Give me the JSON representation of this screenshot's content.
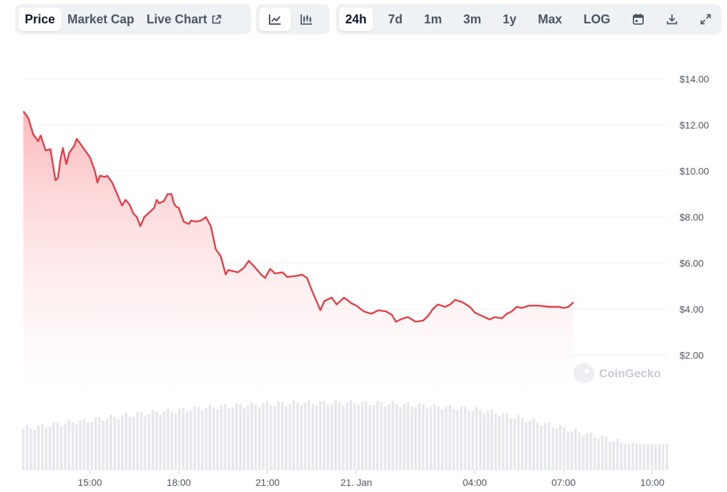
{
  "toolbar": {
    "metric_tabs": [
      {
        "label": "Price",
        "active": true
      },
      {
        "label": "Market Cap",
        "active": false
      },
      {
        "label": "Live Chart",
        "active": false
      }
    ],
    "chart_type_icons": [
      {
        "icon": "line-chart-icon",
        "active": true
      },
      {
        "icon": "candlestick-chart-icon",
        "active": false
      }
    ],
    "ranges": [
      {
        "label": "24h",
        "active": true
      },
      {
        "label": "7d",
        "active": false
      },
      {
        "label": "1m",
        "active": false
      },
      {
        "label": "3m",
        "active": false
      },
      {
        "label": "1y",
        "active": false
      },
      {
        "label": "Max",
        "active": false
      }
    ],
    "log_label": "LOG",
    "tool_icons": [
      "calendar-icon",
      "download-icon",
      "expand-icon"
    ]
  },
  "watermark": "CoinGecko",
  "colors": {
    "line": "#ea3943",
    "fill_top": "#fbb6b9",
    "volume": "#e5e7eb",
    "grid": "#eef0f3"
  },
  "chart_data": {
    "type": "area",
    "title": "",
    "y_axis": {
      "min": 2,
      "max": 14,
      "ticks": [
        2,
        4,
        6,
        8,
        10,
        12,
        14
      ],
      "tick_labels": [
        "$2.00",
        "$4.00",
        "$6.00",
        "$8.00",
        "$10.00",
        "$12.00",
        "$14.00"
      ],
      "position": "right"
    },
    "x_axis": {
      "start": "2025-01-20 12:45",
      "end": "2025-01-21 10:30",
      "ticks": [
        {
          "time": "2025-01-20 15:00",
          "label": "15:00"
        },
        {
          "time": "2025-01-20 18:00",
          "label": "18:00"
        },
        {
          "time": "2025-01-20 21:00",
          "label": "21:00"
        },
        {
          "time": "2025-01-21 00:00",
          "label": "21. Jan"
        },
        {
          "time": "2025-01-21 04:00",
          "label": "04:00"
        },
        {
          "time": "2025-01-21 07:00",
          "label": "07:00"
        },
        {
          "time": "2025-01-21 10:00",
          "label": "10:00"
        }
      ]
    },
    "grid": true,
    "series": [
      {
        "points": [
          [
            "2025-01-20 12:45",
            12.6
          ],
          [
            "2025-01-20 12:55",
            12.3
          ],
          [
            "2025-01-20 13:05",
            11.6
          ],
          [
            "2025-01-20 13:15",
            11.3
          ],
          [
            "2025-01-20 13:20",
            11.55
          ],
          [
            "2025-01-20 13:30",
            10.9
          ],
          [
            "2025-01-20 13:40",
            10.95
          ],
          [
            "2025-01-20 13:50",
            9.6
          ],
          [
            "2025-01-20 13:55",
            9.7
          ],
          [
            "2025-01-20 14:00",
            10.5
          ],
          [
            "2025-01-20 14:05",
            11.0
          ],
          [
            "2025-01-20 14:12",
            10.3
          ],
          [
            "2025-01-20 14:18",
            10.8
          ],
          [
            "2025-01-20 14:28",
            11.1
          ],
          [
            "2025-01-20 14:33",
            11.4
          ],
          [
            "2025-01-20 14:40",
            11.2
          ],
          [
            "2025-01-20 14:50",
            10.9
          ],
          [
            "2025-01-20 15:00",
            10.6
          ],
          [
            "2025-01-20 15:10",
            10.0
          ],
          [
            "2025-01-20 15:15",
            9.5
          ],
          [
            "2025-01-20 15:20",
            9.8
          ],
          [
            "2025-01-20 15:30",
            9.75
          ],
          [
            "2025-01-20 15:35",
            9.8
          ],
          [
            "2025-01-20 15:45",
            9.5
          ],
          [
            "2025-01-20 15:55",
            9.0
          ],
          [
            "2025-01-20 16:05",
            8.5
          ],
          [
            "2025-01-20 16:12",
            8.75
          ],
          [
            "2025-01-20 16:20",
            8.55
          ],
          [
            "2025-01-20 16:28",
            8.15
          ],
          [
            "2025-01-20 16:35",
            8.0
          ],
          [
            "2025-01-20 16:42",
            7.6
          ],
          [
            "2025-01-20 16:50",
            8.0
          ],
          [
            "2025-01-20 17:00",
            8.2
          ],
          [
            "2025-01-20 17:10",
            8.4
          ],
          [
            "2025-01-20 17:15",
            8.75
          ],
          [
            "2025-01-20 17:20",
            8.6
          ],
          [
            "2025-01-20 17:30",
            8.7
          ],
          [
            "2025-01-20 17:37",
            9.0
          ],
          [
            "2025-01-20 17:45",
            9.0
          ],
          [
            "2025-01-20 17:50",
            8.6
          ],
          [
            "2025-01-20 17:55",
            8.45
          ],
          [
            "2025-01-20 18:00",
            8.4
          ],
          [
            "2025-01-20 18:10",
            7.8
          ],
          [
            "2025-01-20 18:20",
            7.7
          ],
          [
            "2025-01-20 18:25",
            7.85
          ],
          [
            "2025-01-20 18:35",
            7.8
          ],
          [
            "2025-01-20 18:45",
            7.85
          ],
          [
            "2025-01-20 18:55",
            8.0
          ],
          [
            "2025-01-20 19:05",
            7.6
          ],
          [
            "2025-01-20 19:15",
            6.6
          ],
          [
            "2025-01-20 19:25",
            6.3
          ],
          [
            "2025-01-20 19:35",
            5.5
          ],
          [
            "2025-01-20 19:40",
            5.7
          ],
          [
            "2025-01-20 19:50",
            5.65
          ],
          [
            "2025-01-20 20:00",
            5.6
          ],
          [
            "2025-01-20 20:12",
            5.8
          ],
          [
            "2025-01-20 20:22",
            6.1
          ],
          [
            "2025-01-20 20:35",
            5.8
          ],
          [
            "2025-01-20 20:47",
            5.5
          ],
          [
            "2025-01-20 20:55",
            5.35
          ],
          [
            "2025-01-20 21:05",
            5.75
          ],
          [
            "2025-01-20 21:15",
            5.55
          ],
          [
            "2025-01-20 21:30",
            5.6
          ],
          [
            "2025-01-20 21:40",
            5.4
          ],
          [
            "2025-01-20 22:00",
            5.45
          ],
          [
            "2025-01-20 22:10",
            5.5
          ],
          [
            "2025-01-20 22:20",
            5.35
          ],
          [
            "2025-01-20 22:30",
            4.8
          ],
          [
            "2025-01-20 22:40",
            4.3
          ],
          [
            "2025-01-20 22:47",
            3.95
          ],
          [
            "2025-01-20 22:55",
            4.35
          ],
          [
            "2025-01-20 23:10",
            4.5
          ],
          [
            "2025-01-20 23:20",
            4.2
          ],
          [
            "2025-01-20 23:35",
            4.5
          ],
          [
            "2025-01-20 23:50",
            4.25
          ],
          [
            "2025-01-21 00:00",
            4.15
          ],
          [
            "2025-01-21 00:15",
            3.9
          ],
          [
            "2025-01-21 00:30",
            3.8
          ],
          [
            "2025-01-21 00:45",
            3.95
          ],
          [
            "2025-01-21 01:00",
            3.9
          ],
          [
            "2025-01-21 01:12",
            3.75
          ],
          [
            "2025-01-21 01:20",
            3.45
          ],
          [
            "2025-01-21 01:35",
            3.6
          ],
          [
            "2025-01-21 01:45",
            3.65
          ],
          [
            "2025-01-21 02:00",
            3.45
          ],
          [
            "2025-01-21 02:15",
            3.5
          ],
          [
            "2025-01-21 02:25",
            3.7
          ],
          [
            "2025-01-21 02:35",
            4.0
          ],
          [
            "2025-01-21 02:45",
            4.2
          ],
          [
            "2025-01-21 03:00",
            4.1
          ],
          [
            "2025-01-21 03:10",
            4.2
          ],
          [
            "2025-01-21 03:20",
            4.4
          ],
          [
            "2025-01-21 03:35",
            4.3
          ],
          [
            "2025-01-21 03:50",
            4.1
          ],
          [
            "2025-01-21 04:00",
            3.85
          ],
          [
            "2025-01-21 04:15",
            3.7
          ],
          [
            "2025-01-21 04:30",
            3.55
          ],
          [
            "2025-01-21 04:40",
            3.65
          ],
          [
            "2025-01-21 04:55",
            3.6
          ],
          [
            "2025-01-21 05:05",
            3.8
          ],
          [
            "2025-01-21 05:15",
            3.9
          ],
          [
            "2025-01-21 05:25",
            4.1
          ],
          [
            "2025-01-21 05:35",
            4.05
          ],
          [
            "2025-01-21 05:50",
            4.15
          ],
          [
            "2025-01-21 06:10",
            4.15
          ],
          [
            "2025-01-21 06:30",
            4.1
          ],
          [
            "2025-01-21 06:50",
            4.1
          ],
          [
            "2025-01-21 07:00",
            4.05
          ],
          [
            "2025-01-21 07:10",
            4.1
          ],
          [
            "2025-01-21 07:20",
            4.3
          ]
        ]
      }
    ],
    "volume_bars": true
  }
}
